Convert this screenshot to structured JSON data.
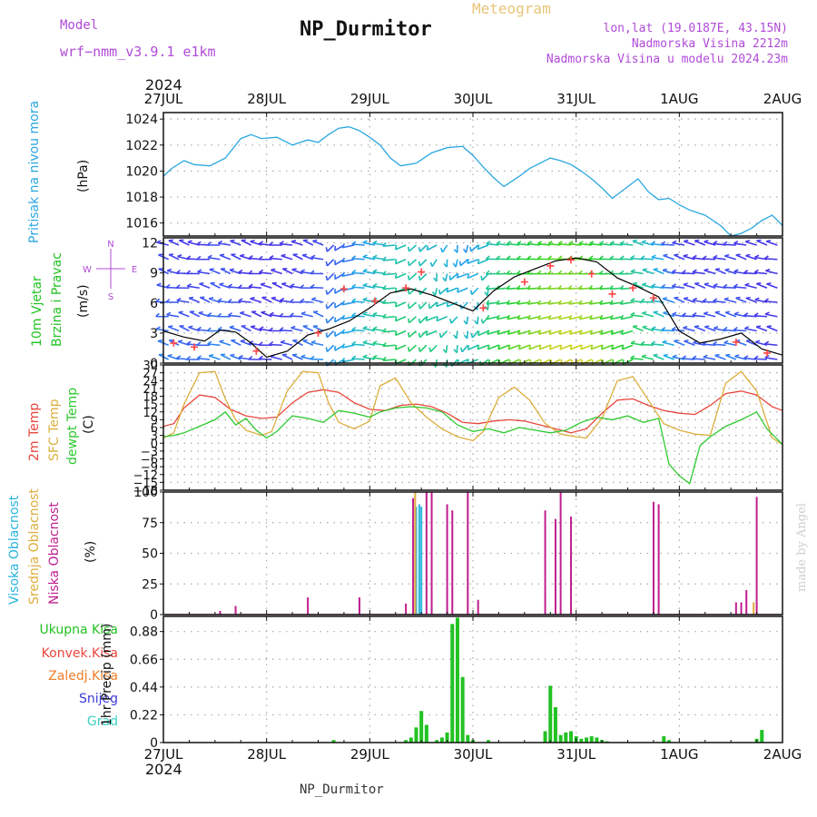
{
  "header": {
    "title": "NP_Durmitor",
    "meteogram_label": "Meteogram",
    "model_label": "Model",
    "model_value": "wrf−nmm_v3.9.1  e1km",
    "lonlat": "lon,lat (19.0187E, 43.15N)",
    "elevation": "Nadmorska Visina 2212m",
    "model_elevation": "Nadmorska Visina u modelu 2024.23m"
  },
  "footer": {
    "station": "NP_Durmitor"
  },
  "credit": "made by Angel",
  "year": "2024",
  "colors": {
    "pressure": "#2aa7e0",
    "temp2m": "#e8463c",
    "sfc": "#dcae3c",
    "dewpt": "#2dc92d",
    "high": "#27b4dc",
    "mid": "#dcae3c",
    "low": "#c01e8e",
    "total": "#22c222",
    "conv": "#e8463c",
    "frozen": "#f07e2a",
    "snow": "#3c3cd8",
    "graupel": "#3cd0c0",
    "windlabel": "#22c222",
    "dirlabel": "#b04ad8"
  },
  "chart_data": [
    {
      "type": "line",
      "panel": "pressure",
      "x_ticks": [
        "27JUL",
        "28JUL",
        "29JUL",
        "30JUL",
        "31JUL",
        "1AUG",
        "2AUG"
      ],
      "x_range_days": [
        0,
        6
      ],
      "ylim": [
        1015,
        1024.5
      ],
      "yticks": [
        1016,
        1018,
        1020,
        1022,
        1024
      ],
      "ylabel": "(hPa)",
      "series": [
        {
          "name": "Pritisak na nivou mora",
          "color": "#2aa7e0",
          "x": [
            0,
            0.08,
            0.2,
            0.3,
            0.45,
            0.6,
            0.75,
            0.85,
            0.95,
            1.1,
            1.25,
            1.4,
            1.5,
            1.6,
            1.7,
            1.8,
            1.9,
            2.0,
            2.1,
            2.2,
            2.3,
            2.45,
            2.6,
            2.75,
            2.9,
            3.0,
            3.1,
            3.2,
            3.3,
            3.45,
            3.55,
            3.65,
            3.75,
            3.85,
            3.95,
            4.05,
            4.15,
            4.25,
            4.35,
            4.5,
            4.6,
            4.7,
            4.8,
            4.9,
            5.0,
            5.1,
            5.25,
            5.4,
            5.5,
            5.6,
            5.7,
            5.8,
            5.9,
            6.0
          ],
          "y": [
            1019.6,
            1020.2,
            1020.8,
            1020.5,
            1020.4,
            1021.0,
            1022.5,
            1022.8,
            1022.5,
            1022.6,
            1022.0,
            1022.4,
            1022.2,
            1022.8,
            1023.3,
            1023.4,
            1023.1,
            1022.6,
            1022.0,
            1021.0,
            1020.4,
            1020.6,
            1021.4,
            1021.8,
            1021.9,
            1021.2,
            1020.3,
            1019.5,
            1018.8,
            1019.6,
            1020.2,
            1020.6,
            1021.0,
            1020.8,
            1020.5,
            1020.0,
            1019.4,
            1018.7,
            1017.9,
            1018.8,
            1019.4,
            1018.4,
            1017.8,
            1017.9,
            1017.4,
            1017.0,
            1016.6,
            1015.8,
            1015.0,
            1015.2,
            1015.6,
            1016.2,
            1016.6,
            1015.8
          ]
        }
      ]
    },
    {
      "type": "line",
      "panel": "wind",
      "ylim": [
        0,
        12.5
      ],
      "yticks": [
        0,
        3,
        6,
        9,
        12
      ],
      "ylabel": "(m/s)",
      "direction_legend": {
        "n": "N",
        "w": "W",
        "e": "E",
        "s": "S"
      },
      "series": [
        {
          "name": "10m Vjetar Brzina i Pravac",
          "color": "#000000",
          "x": [
            0,
            0.2,
            0.4,
            0.55,
            0.7,
            0.85,
            1.0,
            1.2,
            1.4,
            1.6,
            1.8,
            2.0,
            2.2,
            2.4,
            2.6,
            2.8,
            3.0,
            3.2,
            3.4,
            3.6,
            3.8,
            4.0,
            4.2,
            4.4,
            4.6,
            4.8,
            5.0,
            5.2,
            5.4,
            5.6,
            5.8,
            6.0
          ],
          "y": [
            3.2,
            2.6,
            2.2,
            3.3,
            3.1,
            2.0,
            0.6,
            1.2,
            2.8,
            3.4,
            4.2,
            5.5,
            7.0,
            7.4,
            6.8,
            6.0,
            5.2,
            7.2,
            8.6,
            9.4,
            10.2,
            10.5,
            10.1,
            8.5,
            7.6,
            6.6,
            3.2,
            2.0,
            2.4,
            3.0,
            1.4,
            0.8
          ]
        },
        {
          "name": "gusts",
          "color": "#ff4444",
          "x": [
            0.1,
            0.3,
            0.9,
            1.5,
            1.75,
            2.05,
            2.35,
            2.5,
            3.1,
            3.5,
            3.75,
            3.95,
            4.15,
            4.35,
            4.55,
            4.75,
            5.55,
            5.85
          ],
          "y": [
            2.0,
            1.6,
            1.2,
            3.0,
            7.4,
            6.2,
            7.5,
            9.1,
            5.5,
            8.1,
            9.7,
            10.3,
            8.9,
            6.9,
            7.5,
            6.5,
            2.1,
            1.0
          ]
        }
      ]
    },
    {
      "type": "line",
      "panel": "temperature",
      "ylim": [
        -18,
        30
      ],
      "yticks": [
        -18,
        -15,
        -12,
        -9,
        -6,
        -3,
        0,
        3,
        6,
        9,
        12,
        15,
        18,
        21,
        24,
        27,
        30
      ],
      "ylabel": "(C)",
      "series": [
        {
          "name": "2m Temp",
          "color": "#e8463c",
          "x": [
            0,
            0.1,
            0.2,
            0.35,
            0.5,
            0.65,
            0.8,
            0.95,
            1.1,
            1.25,
            1.4,
            1.55,
            1.7,
            1.85,
            2.0,
            2.15,
            2.3,
            2.45,
            2.6,
            2.75,
            2.9,
            3.05,
            3.2,
            3.35,
            3.5,
            3.65,
            3.8,
            3.95,
            4.1,
            4.25,
            4.4,
            4.55,
            4.7,
            4.85,
            5.0,
            5.15,
            5.3,
            5.45,
            5.6,
            5.75,
            5.9,
            6.0
          ],
          "y": [
            6.5,
            7.5,
            13.5,
            18.5,
            17.5,
            13.0,
            10.5,
            9.5,
            10.0,
            15.5,
            19.5,
            20.5,
            19.5,
            15.5,
            13.0,
            12.5,
            14.5,
            15.0,
            14.0,
            11.5,
            8.0,
            7.5,
            8.5,
            9.0,
            8.5,
            7.0,
            5.5,
            4.0,
            5.5,
            11.5,
            16.5,
            17.0,
            14.5,
            12.5,
            11.5,
            11.0,
            14.5,
            19.0,
            20.0,
            18.5,
            14.0,
            12.5
          ]
        },
        {
          "name": "SFC Temp",
          "color": "#dcae3c",
          "x": [
            0,
            0.1,
            0.2,
            0.35,
            0.5,
            0.6,
            0.7,
            0.8,
            0.95,
            1.05,
            1.2,
            1.35,
            1.5,
            1.6,
            1.7,
            1.85,
            2.0,
            2.1,
            2.25,
            2.4,
            2.55,
            2.7,
            2.85,
            3.0,
            3.1,
            3.25,
            3.4,
            3.55,
            3.7,
            3.85,
            4.0,
            4.1,
            4.25,
            4.4,
            4.55,
            4.7,
            4.85,
            5.0,
            5.15,
            5.3,
            5.45,
            5.6,
            5.75,
            5.9,
            6.0
          ],
          "y": [
            2.0,
            4.0,
            15.0,
            27.0,
            27.5,
            17.0,
            9.0,
            5.0,
            3.0,
            4.5,
            20.0,
            27.5,
            27.0,
            15.5,
            8.0,
            5.5,
            8.5,
            22.0,
            25.0,
            15.5,
            10.0,
            5.5,
            2.5,
            1.0,
            4.5,
            17.5,
            21.5,
            16.5,
            7.5,
            3.5,
            2.5,
            2.0,
            9.5,
            24.0,
            25.5,
            16.5,
            7.5,
            5.0,
            3.5,
            3.0,
            23.0,
            27.5,
            20.0,
            2.0,
            -0.5
          ]
        },
        {
          "name": "dewpt Temp",
          "color": "#2dc92d",
          "x": [
            0,
            0.1,
            0.2,
            0.35,
            0.5,
            0.6,
            0.7,
            0.8,
            0.9,
            1.0,
            1.1,
            1.25,
            1.4,
            1.55,
            1.7,
            1.85,
            2.0,
            2.1,
            2.25,
            2.4,
            2.55,
            2.7,
            2.85,
            3.0,
            3.15,
            3.3,
            3.45,
            3.6,
            3.75,
            3.9,
            4.05,
            4.2,
            4.35,
            4.5,
            4.65,
            4.8,
            4.9,
            5.0,
            5.1,
            5.2,
            5.3,
            5.45,
            5.6,
            5.75,
            5.85,
            6.0
          ],
          "y": [
            2.5,
            3.0,
            4.0,
            6.5,
            9.0,
            12.0,
            7.0,
            9.5,
            5.0,
            2.0,
            4.5,
            10.5,
            9.5,
            8.0,
            12.5,
            11.5,
            10.0,
            12.0,
            13.5,
            14.0,
            13.5,
            12.0,
            7.0,
            4.5,
            5.5,
            4.0,
            6.0,
            5.0,
            4.0,
            5.0,
            8.0,
            10.0,
            9.0,
            10.5,
            8.0,
            9.5,
            -8.0,
            -12.5,
            -15.5,
            -1.0,
            2.5,
            6.5,
            9.0,
            12.0,
            5.5,
            -0.5
          ]
        }
      ]
    },
    {
      "type": "bar",
      "panel": "cloud",
      "ylim": [
        0,
        100
      ],
      "yticks": [
        0,
        25,
        50,
        75,
        100
      ],
      "ylabel": "(%)",
      "series": [
        {
          "name": "Visoka Oblacnost",
          "color": "#27b4dc",
          "x": [
            2.45,
            2.48,
            2.5
          ],
          "values": [
            88,
            90,
            88
          ]
        },
        {
          "name": "Srednja Oblacnost",
          "color": "#dcae3c",
          "x": [
            2.44,
            5.72
          ],
          "values": [
            100,
            10
          ]
        },
        {
          "name": "Niska Oblacnost",
          "color": "#c01e8e",
          "x": [
            0.55,
            0.7,
            1.4,
            1.9,
            2.35,
            2.42,
            2.55,
            2.6,
            2.75,
            2.8,
            2.95,
            3.05,
            3.7,
            3.8,
            3.85,
            3.95,
            4.75,
            4.8,
            5.55,
            5.6,
            5.65,
            5.75
          ],
          "values": [
            3,
            7,
            14,
            14,
            9,
            95,
            100,
            100,
            90,
            85,
            100,
            12,
            85,
            78,
            100,
            80,
            92,
            90,
            10,
            10,
            20,
            96
          ]
        }
      ]
    },
    {
      "type": "bar",
      "panel": "precip",
      "ylim": [
        0,
        1.0
      ],
      "yticks": [
        0,
        0.22,
        0.44,
        0.66,
        0.88
      ],
      "ylabel": "1hr Precip (mm)",
      "series": [
        {
          "name": "Ukupna Kisa",
          "color": "#22c222",
          "x": [
            1.65,
            2.35,
            2.4,
            2.45,
            2.5,
            2.55,
            2.65,
            2.7,
            2.75,
            2.8,
            2.85,
            2.9,
            2.95,
            3.0,
            3.15,
            3.7,
            3.75,
            3.8,
            3.85,
            3.9,
            3.95,
            4.0,
            4.05,
            4.1,
            4.15,
            4.2,
            4.25,
            4.3,
            4.85,
            4.9,
            5.75,
            5.8
          ],
          "values": [
            0.02,
            0.02,
            0.04,
            0.12,
            0.25,
            0.14,
            0.02,
            0.04,
            0.08,
            0.94,
            0.99,
            0.52,
            0.06,
            0.02,
            0.02,
            0.09,
            0.45,
            0.28,
            0.06,
            0.08,
            0.09,
            0.05,
            0.03,
            0.04,
            0.05,
            0.04,
            0.02,
            0.01,
            0.05,
            0.02,
            0.03,
            0.1
          ]
        },
        {
          "name": "Konvek.Kisa",
          "color": "#e8463c",
          "x": [],
          "values": []
        },
        {
          "name": "Zaledj.Kisa",
          "color": "#f07e2a",
          "x": [],
          "values": []
        },
        {
          "name": "Snijeg",
          "color": "#3c3cd8",
          "x": [],
          "values": []
        },
        {
          "name": "Grad",
          "color": "#3cd0c0",
          "x": [],
          "values": []
        }
      ]
    }
  ]
}
